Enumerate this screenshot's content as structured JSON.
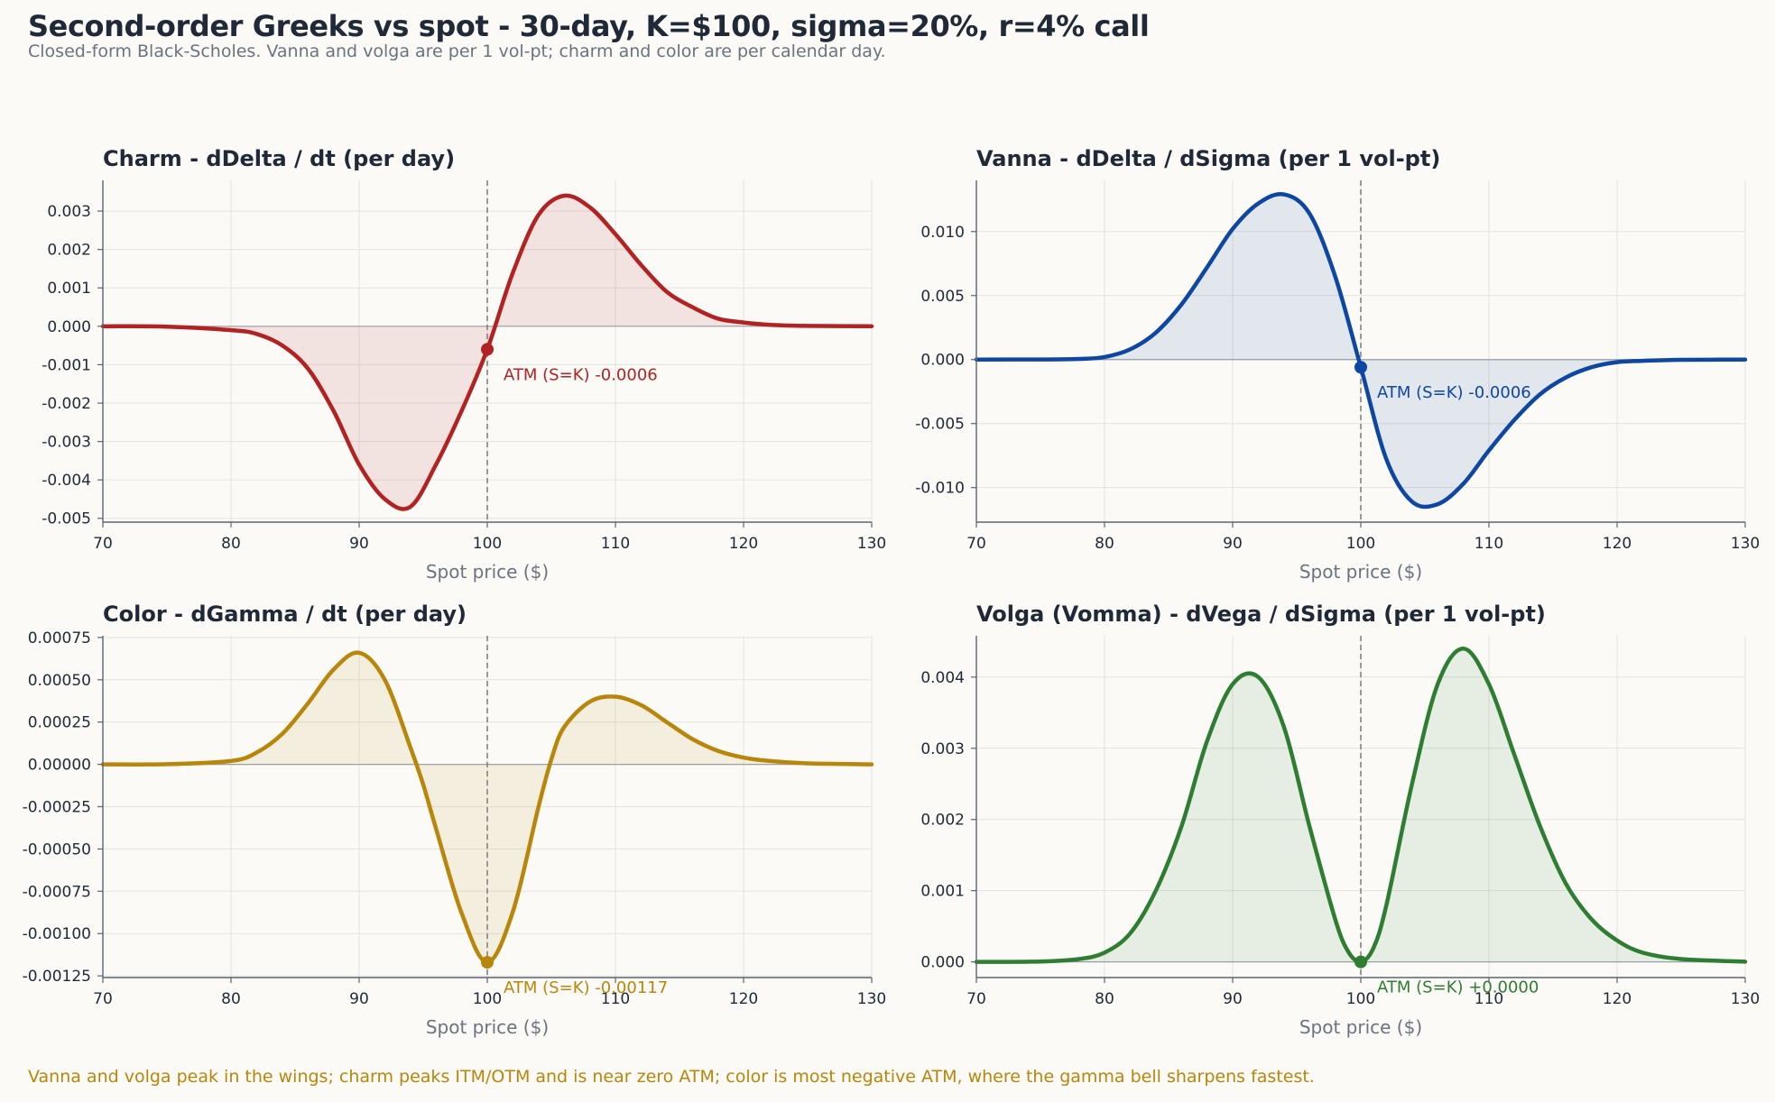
{
  "title": "Second-order Greeks vs spot - 30-day, K=$100, sigma=20%, r=4% call",
  "subtitle": "Closed-form Black-Scholes. Vanna and volga are per 1 vol-pt; charm and color are per calendar day.",
  "footnote": "Vanna and volga peak in the wings; charm peaks ITM/OTM and is near zero ATM; color is most negative ATM, where the gamma bell sharpens fastest.",
  "chart_data": [
    {
      "type": "area",
      "title": "Charm - dDelta / dt (per day)",
      "xlabel": "Spot price ($)",
      "ylabel": "",
      "color": "#b22222",
      "xlim": [
        70,
        130
      ],
      "ylim": [
        -0.0051,
        0.0038
      ],
      "xticks": [
        70,
        80,
        90,
        100,
        110,
        120,
        130
      ],
      "xtick_labels": [
        "70",
        "80",
        "90",
        "100",
        "110",
        "120",
        "130"
      ],
      "yticks": [
        0.003,
        0.002,
        0.001,
        0.0,
        -0.001,
        -0.002,
        -0.003,
        -0.004,
        -0.005
      ],
      "ytick_labels": [
        "0.003",
        "0.002",
        "0.001",
        "0.000",
        "-0.001",
        "-0.002",
        "-0.003",
        "-0.004",
        "-0.005"
      ],
      "grid": true,
      "x": [
        70,
        75,
        80,
        82,
        84,
        86,
        88,
        90,
        92,
        94,
        96,
        98,
        100,
        102,
        104,
        106,
        108,
        110,
        112,
        114,
        116,
        118,
        120,
        122,
        125,
        130
      ],
      "y": [
        0,
        -1e-05,
        -0.0001,
        -0.0002,
        -0.0005,
        -0.0011,
        -0.0022,
        -0.0036,
        -0.0045,
        -0.0047,
        -0.0036,
        -0.0022,
        -0.0006,
        0.0014,
        0.0029,
        0.0034,
        0.0031,
        0.0024,
        0.0016,
        0.0009,
        0.0005,
        0.0002,
        0.0001,
        4e-05,
        1e-05,
        0
      ],
      "marker": {
        "x": 100,
        "y": -0.0006
      },
      "annotation": "ATM (S=K) -0.0006"
    },
    {
      "type": "area",
      "title": "Vanna - dDelta / dSigma (per 1 vol-pt)",
      "xlabel": "Spot price ($)",
      "ylabel": "",
      "color": "#0d47a1",
      "xlim": [
        70,
        130
      ],
      "ylim": [
        -0.0127,
        0.014
      ],
      "xticks": [
        70,
        80,
        90,
        100,
        110,
        120,
        130
      ],
      "xtick_labels": [
        "70",
        "80",
        "90",
        "100",
        "110",
        "120",
        "130"
      ],
      "yticks": [
        0.01,
        0.005,
        0.0,
        -0.005,
        -0.01
      ],
      "ytick_labels": [
        "0.010",
        "0.005",
        "0.000",
        "-0.005",
        "-0.010"
      ],
      "grid": true,
      "x": [
        70,
        75,
        78,
        80,
        82,
        84,
        86,
        88,
        90,
        92,
        94,
        96,
        98,
        100,
        102,
        104,
        106,
        108,
        110,
        112,
        114,
        116,
        118,
        120,
        122,
        125,
        130
      ],
      "y": [
        0,
        1e-05,
        5e-05,
        0.0002,
        0.0008,
        0.0021,
        0.0043,
        0.0072,
        0.0102,
        0.0122,
        0.0129,
        0.0114,
        0.0065,
        -0.0006,
        -0.0078,
        -0.0111,
        -0.0113,
        -0.0097,
        -0.0071,
        -0.0047,
        -0.0027,
        -0.0014,
        -0.0006,
        -0.0002,
        -0.0001,
        -2e-05,
        0
      ],
      "marker": {
        "x": 100,
        "y": -0.0006
      },
      "annotation": "ATM (S=K) -0.0006"
    },
    {
      "type": "area",
      "title": "Color - dGamma / dt (per day)",
      "xlabel": "Spot price ($)",
      "ylabel": "",
      "color": "#b8860b",
      "xlim": [
        70,
        130
      ],
      "ylim": [
        -0.00126,
        0.00076
      ],
      "xticks": [
        70,
        80,
        90,
        100,
        110,
        120,
        130
      ],
      "xtick_labels": [
        "70",
        "80",
        "90",
        "100",
        "110",
        "120",
        "130"
      ],
      "yticks": [
        0.00075,
        0.0005,
        0.00025,
        0.0,
        -0.00025,
        -0.0005,
        -0.00075,
        -0.001,
        -0.00125
      ],
      "ytick_labels": [
        "0.00075",
        "0.00050",
        "0.00025",
        "0.00000",
        "-0.00025",
        "-0.00050",
        "-0.00075",
        "-0.00100",
        "-0.00125"
      ],
      "grid": true,
      "x": [
        70,
        75,
        80,
        82,
        84,
        86,
        88,
        90,
        92,
        94,
        95,
        96,
        98,
        100,
        102,
        104,
        105,
        106,
        108,
        110,
        112,
        114,
        116,
        118,
        120,
        122,
        125,
        130
      ],
      "y": [
        0,
        1e-06,
        2e-05,
        7e-05,
        0.00018,
        0.00036,
        0.00056,
        0.00066,
        0.0005,
        0.0001,
        -0.00012,
        -0.00038,
        -0.00088,
        -0.00117,
        -0.00087,
        -0.00025,
        3e-05,
        0.00022,
        0.00037,
        0.0004,
        0.00035,
        0.00025,
        0.00015,
        8e-05,
        4e-05,
        2e-05,
        6e-06,
        0
      ],
      "marker": {
        "x": 100,
        "y": -0.00117
      },
      "annotation": "ATM (S=K) -0.00117"
    },
    {
      "type": "area",
      "title": "Volga (Vomma) - dVega / dSigma (per 1 vol-pt)",
      "xlabel": "Spot price ($)",
      "ylabel": "",
      "color": "#2e7d32",
      "xlim": [
        70,
        130
      ],
      "ylim": [
        -0.00022,
        0.00458
      ],
      "xticks": [
        70,
        80,
        90,
        100,
        110,
        120,
        130
      ],
      "xtick_labels": [
        "70",
        "80",
        "90",
        "100",
        "110",
        "120",
        "130"
      ],
      "yticks": [
        0.004,
        0.003,
        0.002,
        0.001,
        0.0
      ],
      "ytick_labels": [
        "0.004",
        "0.003",
        "0.002",
        "0.001",
        "0.000"
      ],
      "grid": true,
      "x": [
        70,
        75,
        78,
        80,
        82,
        84,
        86,
        88,
        90,
        92,
        94,
        96,
        98,
        99,
        100,
        101,
        102,
        104,
        106,
        108,
        110,
        112,
        114,
        116,
        118,
        120,
        122,
        125,
        130
      ],
      "y": [
        0,
        5e-06,
        4e-05,
        0.00013,
        0.0004,
        0.001,
        0.0019,
        0.0031,
        0.0039,
        0.004,
        0.0033,
        0.0019,
        0.0006,
        0.00015,
        0.0,
        0.0002,
        0.0008,
        0.0025,
        0.0039,
        0.0044,
        0.0039,
        0.0029,
        0.0019,
        0.0011,
        0.0006,
        0.0003,
        0.00013,
        4e-05,
        3e-06
      ],
      "marker": {
        "x": 100,
        "y": 0.0
      },
      "annotation": "ATM (S=K) +0.0000"
    }
  ]
}
